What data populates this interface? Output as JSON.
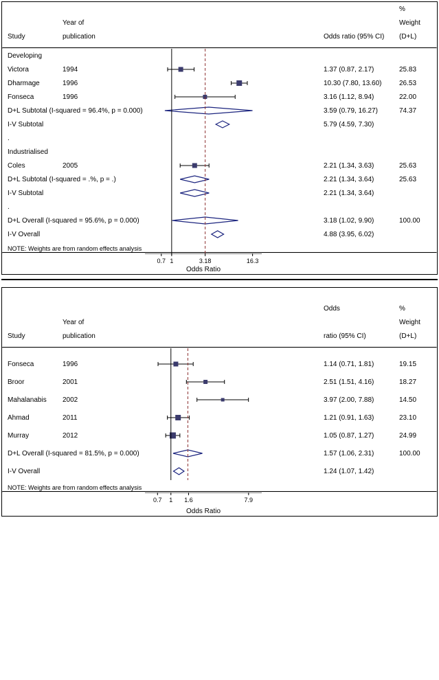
{
  "colors": {
    "background": "#ffffff",
    "text": "#000000",
    "axis": "#000000",
    "ci_line": "#000000",
    "marker_fill": "#3b3b6d",
    "diamond_stroke": "#1a237e",
    "diamond_fill_open": "none",
    "ref_line": "#8b2e2e",
    "ref_dash": "4,3"
  },
  "panel1": {
    "headers": {
      "study": "Study",
      "year1": "Year of",
      "year2": "publication",
      "or": "Odds ratio (95% CI)",
      "wt1": "%",
      "wt2": "Weight",
      "wt3": "(D+L)"
    },
    "axis": {
      "label": "Odds Ratio",
      "ticks": [
        0.7,
        1,
        3.18,
        16.3
      ],
      "xmin_log": -0.4,
      "xmax_log": 1.35,
      "ref_value": 3.18,
      "null_value": 1
    },
    "groups": [
      {
        "name": "Developing",
        "rows": [
          {
            "study": "Victora",
            "year": "1994",
            "or": 1.37,
            "lo": 0.87,
            "hi": 2.17,
            "or_text": "1.37 (0.87, 2.17)",
            "wt": "25.83",
            "marker": "square",
            "size": 7
          },
          {
            "study": "Dharmage",
            "year": "1996",
            "or": 10.3,
            "lo": 7.8,
            "hi": 13.6,
            "or_text": "10.30 (7.80, 13.60)",
            "wt": "26.53",
            "marker": "square",
            "size": 8
          },
          {
            "study": "Fonseca",
            "year": "1996",
            "or": 3.16,
            "lo": 1.12,
            "hi": 8.94,
            "or_text": "3.16 (1.12, 8.94)",
            "wt": "22.00",
            "marker": "square",
            "size": 6
          },
          {
            "study": "D+L Subtotal  (I-squared = 96.4%, p = 0.000)",
            "year": "",
            "or": 3.59,
            "lo": 0.79,
            "hi": 16.27,
            "or_text": "3.59 (0.79, 16.27)",
            "wt": "74.37",
            "marker": "diamond_wide"
          },
          {
            "study": "I-V Subtotal",
            "year": "",
            "or": 5.79,
            "lo": 4.59,
            "hi": 7.3,
            "or_text": "5.79 (4.59, 7.30)",
            "wt": "",
            "marker": "diamond_small"
          }
        ]
      },
      {
        "name": "Industrialised",
        "rows": [
          {
            "study": "Coles",
            "year": "2005",
            "or": 2.21,
            "lo": 1.34,
            "hi": 3.63,
            "or_text": "2.21 (1.34, 3.63)",
            "wt": "25.63",
            "marker": "square",
            "size": 7
          },
          {
            "study": "D+L Subtotal  (I-squared = .%, p = .)",
            "year": "",
            "or": 2.21,
            "lo": 1.34,
            "hi": 3.64,
            "or_text": "2.21 (1.34, 3.64)",
            "wt": "25.63",
            "marker": "diamond_wide"
          },
          {
            "study": "I-V Subtotal",
            "year": "",
            "or": 2.21,
            "lo": 1.34,
            "hi": 3.64,
            "or_text": "2.21 (1.34, 3.64)",
            "wt": "",
            "marker": "diamond_wide"
          }
        ]
      }
    ],
    "overall": [
      {
        "study": "D+L Overall  (I-squared = 95.6%, p = 0.000)",
        "or": 3.18,
        "lo": 1.02,
        "hi": 9.9,
        "or_text": "3.18 (1.02, 9.90)",
        "wt": "100.00",
        "marker": "diamond_wide"
      },
      {
        "study": "I-V Overall",
        "or": 4.88,
        "lo": 3.95,
        "hi": 6.02,
        "or_text": "4.88 (3.95, 6.02)",
        "wt": "",
        "marker": "diamond_small"
      }
    ],
    "note": "NOTE: Weights are from random effects analysis"
  },
  "panel2": {
    "headers": {
      "study": "Study",
      "year1": "Year of",
      "year2": "publication",
      "or1": "Odds",
      "or2": "ratio (95% CI)",
      "wt1": "%",
      "wt2": "Weight",
      "wt3": "(D+L)"
    },
    "axis": {
      "label": "Odds Ratio",
      "ticks": [
        0.7,
        1,
        1.6,
        7.9
      ],
      "xmin_log": -0.3,
      "xmax_log": 1.05,
      "ref_value": 1.57,
      "null_value": 1
    },
    "rows": [
      {
        "study": "Fonseca",
        "year": "1996",
        "or": 1.14,
        "lo": 0.71,
        "hi": 1.81,
        "or_text": "1.14 (0.71, 1.81)",
        "wt": "19.15",
        "marker": "square",
        "size": 7
      },
      {
        "study": "Broor",
        "year": "2001",
        "or": 2.51,
        "lo": 1.51,
        "hi": 4.16,
        "or_text": "2.51 (1.51, 4.16)",
        "wt": "18.27",
        "marker": "square",
        "size": 6
      },
      {
        "study": "Mahalanabis",
        "year": "2002",
        "or": 3.97,
        "lo": 2.0,
        "hi": 7.88,
        "or_text": "3.97 (2.00, 7.88)",
        "wt": "14.50",
        "marker": "square",
        "size": 5
      },
      {
        "study": "Ahmad",
        "year": "2011",
        "or": 1.21,
        "lo": 0.91,
        "hi": 1.63,
        "or_text": "1.21 (0.91, 1.63)",
        "wt": "23.10",
        "marker": "square",
        "size": 8
      },
      {
        "study": "Murray",
        "year": "2012",
        "or": 1.05,
        "lo": 0.87,
        "hi": 1.27,
        "or_text": "1.05 (0.87, 1.27)",
        "wt": "24.99",
        "marker": "square",
        "size": 9
      }
    ],
    "overall": [
      {
        "study": "D+L Overall  (I-squared = 81.5%, p = 0.000)",
        "or": 1.57,
        "lo": 1.06,
        "hi": 2.31,
        "or_text": "1.57 (1.06, 2.31)",
        "wt": "100.00",
        "marker": "diamond_wide"
      },
      {
        "study": "I-V Overall",
        "or": 1.24,
        "lo": 1.07,
        "hi": 1.42,
        "or_text": "1.24 (1.07, 1.42)",
        "wt": "",
        "marker": "diamond_small"
      }
    ],
    "note": "NOTE: Weights are from random effects analysis"
  }
}
